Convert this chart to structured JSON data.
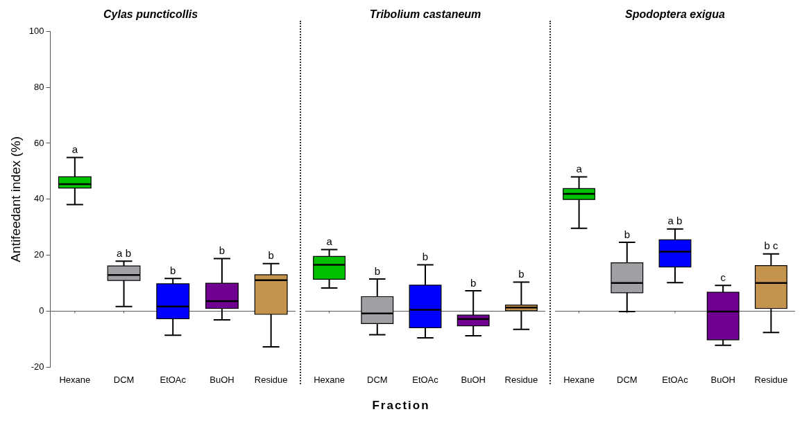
{
  "chart_data": [
    {
      "type": "box",
      "title": "Cylas puncticollis",
      "ylabel": "Antifeedant index (%)",
      "categories": [
        "Hexane",
        "DCM",
        "EtOAc",
        "BuOH",
        "Residue"
      ],
      "boxes": [
        {
          "low": 38.1,
          "q1": 44.0,
          "median": 45.4,
          "q3": 48.0,
          "high": 54.9
        },
        {
          "low": 1.7,
          "q1": 11.0,
          "median": 12.9,
          "q3": 16.2,
          "high": 17.9
        },
        {
          "low": -8.6,
          "q1": -2.7,
          "median": 1.7,
          "q3": 9.8,
          "high": 11.7
        },
        {
          "low": -3.1,
          "q1": 1.0,
          "median": 3.6,
          "q3": 10.0,
          "high": 18.8
        },
        {
          "low": -12.7,
          "q1": -1.1,
          "median": 11.1,
          "q3": 13.0,
          "high": 17.0
        }
      ],
      "colors": [
        "#00c000",
        "#a0a0a4",
        "#0000ff",
        "#700090",
        "#c4944e"
      ],
      "ylim": [
        -20,
        100
      ],
      "yticks": [
        -20,
        0,
        20,
        40,
        60,
        80,
        100
      ],
      "grid": false,
      "ref_lines": [
        {
          "axis": "y",
          "value": 0
        }
      ],
      "annotations": [
        {
          "text": "a",
          "x": "Hexane",
          "y": 54.9
        },
        {
          "text": "a b",
          "x": "DCM",
          "y": 17.9
        },
        {
          "text": "b",
          "x": "EtOAc",
          "y": 11.7
        },
        {
          "text": "b",
          "x": "BuOH",
          "y": 18.8
        },
        {
          "text": "b",
          "x": "Residue",
          "y": 17.0
        }
      ]
    },
    {
      "type": "box",
      "title": "Tribolium castaneum",
      "xlabel": "Fraction",
      "categories": [
        "Hexane",
        "DCM",
        "EtOAc",
        "BuOH",
        "Residue"
      ],
      "boxes": [
        {
          "low": 8.3,
          "q1": 11.4,
          "median": 16.6,
          "q3": 19.6,
          "high": 22.0
        },
        {
          "low": -8.4,
          "q1": -4.4,
          "median": -0.8,
          "q3": 5.2,
          "high": 11.5
        },
        {
          "low": -9.5,
          "q1": -5.9,
          "median": 0.5,
          "q3": 9.3,
          "high": 16.6
        },
        {
          "low": -8.8,
          "q1": -5.2,
          "median": -2.8,
          "q3": -1.4,
          "high": 7.3
        },
        {
          "low": -6.5,
          "q1": 0.2,
          "median": 1.3,
          "q3": 2.2,
          "high": 10.4
        }
      ],
      "colors": [
        "#00c000",
        "#a0a0a4",
        "#0000ff",
        "#700090",
        "#c4944e"
      ],
      "ylim": [
        -20,
        100
      ],
      "tick_labels": "x",
      "grid": false,
      "ref_lines": [
        {
          "axis": "y",
          "value": 0
        }
      ],
      "annotations": [
        {
          "text": "a",
          "x": "Hexane",
          "y": 22.0
        },
        {
          "text": "b",
          "x": "DCM",
          "y": 11.5
        },
        {
          "text": "b",
          "x": "EtOAc",
          "y": 16.6
        },
        {
          "text": "b",
          "x": "BuOH",
          "y": 7.3
        },
        {
          "text": "b",
          "x": "Residue",
          "y": 10.4
        }
      ]
    },
    {
      "type": "box",
      "title": "Spodoptera exigua",
      "categories": [
        "Hexane",
        "DCM",
        "EtOAc",
        "BuOH",
        "Residue"
      ],
      "boxes": [
        {
          "low": 29.6,
          "q1": 39.9,
          "median": 41.9,
          "q3": 43.8,
          "high": 48.0
        },
        {
          "low": -0.1,
          "q1": 6.6,
          "median": 10.1,
          "q3": 17.3,
          "high": 24.6
        },
        {
          "low": 10.2,
          "q1": 15.8,
          "median": 21.3,
          "q3": 25.5,
          "high": 29.4
        },
        {
          "low": -12.2,
          "q1": -10.2,
          "median": -0.1,
          "q3": 6.8,
          "high": 9.2
        },
        {
          "low": -7.6,
          "q1": 1.0,
          "median": 10.1,
          "q3": 16.3,
          "high": 20.5
        }
      ],
      "colors": [
        "#00c000",
        "#a0a0a4",
        "#0000ff",
        "#700090",
        "#c4944e"
      ],
      "ylim": [
        -20,
        100
      ],
      "tick_labels": "x",
      "grid": false,
      "ref_lines": [
        {
          "axis": "y",
          "value": 0
        }
      ],
      "annotations": [
        {
          "text": "a",
          "x": "Hexane",
          "y": 48.0
        },
        {
          "text": "b",
          "x": "DCM",
          "y": 24.6
        },
        {
          "text": "a b",
          "x": "EtOAc",
          "y": 29.4
        },
        {
          "text": "c",
          "x": "BuOH",
          "y": 9.2
        },
        {
          "text": "b c",
          "x": "Residue",
          "y": 20.5
        }
      ]
    }
  ]
}
